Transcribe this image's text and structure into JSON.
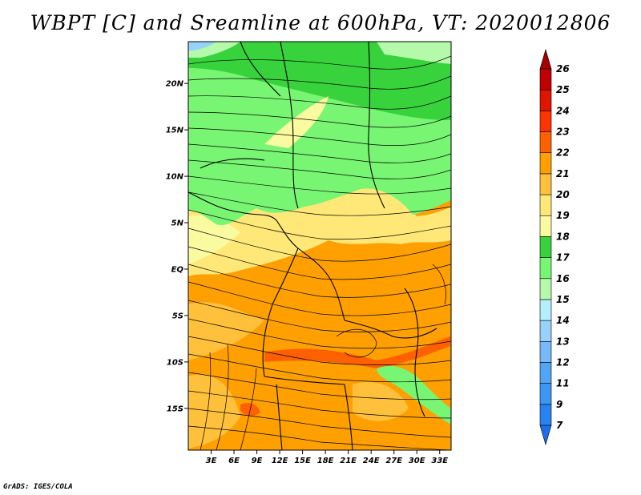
{
  "title": "WBPT [C] and Sreamline at 600hPa, VT: 2020012806",
  "footer": "GrADS: IGES/COLA",
  "map": {
    "lat_labels": [
      "20N",
      "15N",
      "10N",
      "5N",
      "EQ",
      "5S",
      "10S",
      "15S"
    ],
    "lon_labels": [
      "3E",
      "6E",
      "9E",
      "12E",
      "15E",
      "18E",
      "21E",
      "24E",
      "27E",
      "30E",
      "33E"
    ],
    "lat_range": [
      -19.5,
      24.5
    ],
    "lon_range": [
      0,
      34.5
    ]
  },
  "colorbar": {
    "labels": [
      "7",
      "9",
      "11",
      "12",
      "13",
      "14",
      "15",
      "16",
      "17",
      "18",
      "19",
      "20",
      "21",
      "22",
      "23",
      "24",
      "25",
      "26"
    ],
    "colors": [
      "#1e6eeb",
      "#2882f0",
      "#3c96f5",
      "#50a5f5",
      "#78b9fa",
      "#96d2fa",
      "#b4f0fa",
      "#b4faaa",
      "#78f573",
      "#37d23c",
      "#fafaa0",
      "#ffe878",
      "#ffc03c",
      "#ffa000",
      "#ff6000",
      "#ff3200",
      "#e11400",
      "#c00000",
      "#a50000"
    ]
  }
}
